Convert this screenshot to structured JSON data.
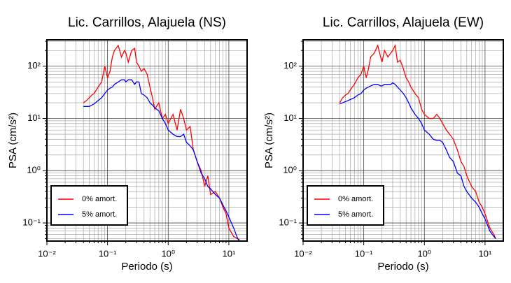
{
  "chart_data": [
    {
      "type": "line",
      "title": "Lic. Carrillos, Alajuela (NS)",
      "xlabel": "Periodo (s)",
      "ylabel": "PSA (cm/s²)",
      "log_x": true,
      "log_y": true,
      "grid": true,
      "minor_grid": true,
      "legend": "bottom-left",
      "xlim": [
        0.01,
        20
      ],
      "ylim": [
        0.045,
        320
      ],
      "xticks": [
        {
          "value": 0.01,
          "label": "10⁻²"
        },
        {
          "value": 0.1,
          "label": "10⁻¹"
        },
        {
          "value": 1,
          "label": "10⁰"
        },
        {
          "value": 10,
          "label": "10¹"
        }
      ],
      "yticks": [
        {
          "value": 0.1,
          "label": "10⁻¹"
        },
        {
          "value": 1,
          "label": "10⁰"
        },
        {
          "value": 10,
          "label": "10¹"
        },
        {
          "value": 100,
          "label": "10²"
        }
      ],
      "x": [
        0.04,
        0.045,
        0.05,
        0.055,
        0.06,
        0.07,
        0.08,
        0.09,
        0.1,
        0.11,
        0.12,
        0.13,
        0.15,
        0.17,
        0.19,
        0.2,
        0.22,
        0.25,
        0.28,
        0.3,
        0.33,
        0.36,
        0.4,
        0.45,
        0.5,
        0.55,
        0.6,
        0.7,
        0.8,
        0.9,
        1.0,
        1.2,
        1.4,
        1.6,
        1.8,
        2.0,
        2.3,
        2.6,
        3.0,
        3.5,
        4.0,
        4.5,
        5,
        6,
        7,
        8,
        9,
        10,
        12,
        14,
        15
      ],
      "series": [
        {
          "name": "0% amort.",
          "color": "#ff0000",
          "values": [
            20,
            22,
            25,
            28,
            30,
            40,
            50,
            100,
            60,
            80,
            150,
            200,
            250,
            150,
            200,
            180,
            120,
            200,
            220,
            120,
            100,
            80,
            90,
            70,
            40,
            25,
            15,
            20,
            10,
            12,
            8,
            12,
            6,
            15,
            10,
            6,
            7,
            2.5,
            1.5,
            1.0,
            0.5,
            0.8,
            0.35,
            0.4,
            0.3,
            0.2,
            0.15,
            0.08,
            0.055,
            0.05,
            0.048
          ]
        },
        {
          "name": "5% amort.",
          "color": "#0000ff",
          "values": [
            17,
            17,
            17,
            18,
            19,
            22,
            25,
            30,
            35,
            38,
            40,
            45,
            50,
            55,
            55,
            50,
            55,
            55,
            45,
            50,
            50,
            30,
            28,
            25,
            20,
            18,
            16,
            14,
            10,
            8,
            6,
            5,
            4.5,
            4.5,
            5,
            3.5,
            3,
            2.5,
            1.5,
            0.9,
            0.7,
            0.5,
            0.45,
            0.35,
            0.3,
            0.22,
            0.17,
            0.13,
            0.08,
            0.05,
            0.045
          ]
        }
      ]
    },
    {
      "type": "line",
      "title": "Lic. Carrillos, Alajuela (EW)",
      "xlabel": "Periodo (s)",
      "ylabel": "PSA (cm/s²)",
      "log_x": true,
      "log_y": true,
      "grid": true,
      "minor_grid": true,
      "legend": "bottom-left",
      "xlim": [
        0.01,
        20
      ],
      "ylim": [
        0.045,
        320
      ],
      "xticks": [
        {
          "value": 0.01,
          "label": "10⁻²"
        },
        {
          "value": 0.1,
          "label": "10⁻¹"
        },
        {
          "value": 1,
          "label": "10⁰"
        },
        {
          "value": 10,
          "label": "10¹"
        }
      ],
      "yticks": [
        {
          "value": 0.1,
          "label": "10⁻¹"
        },
        {
          "value": 1,
          "label": "10⁰"
        },
        {
          "value": 10,
          "label": "10¹"
        },
        {
          "value": 100,
          "label": "10²"
        }
      ],
      "x": [
        0.04,
        0.045,
        0.05,
        0.055,
        0.06,
        0.07,
        0.08,
        0.09,
        0.1,
        0.11,
        0.12,
        0.13,
        0.15,
        0.17,
        0.19,
        0.2,
        0.22,
        0.25,
        0.28,
        0.3,
        0.33,
        0.36,
        0.4,
        0.45,
        0.5,
        0.55,
        0.6,
        0.7,
        0.8,
        0.9,
        1.0,
        1.2,
        1.4,
        1.6,
        1.8,
        2.0,
        2.3,
        2.6,
        3.0,
        3.5,
        4.0,
        4.5,
        5,
        6,
        7,
        8,
        9,
        10,
        12,
        14,
        15
      ],
      "series": [
        {
          "name": "0% amort.",
          "color": "#ff0000",
          "values": [
            20,
            25,
            28,
            30,
            35,
            45,
            60,
            70,
            100,
            60,
            90,
            150,
            180,
            250,
            150,
            120,
            200,
            150,
            180,
            200,
            250,
            120,
            130,
            90,
            60,
            50,
            40,
            30,
            25,
            15,
            12,
            10,
            10,
            12,
            10,
            8,
            6,
            5,
            4,
            2.5,
            1.5,
            1.2,
            0.8,
            0.5,
            0.4,
            0.25,
            0.2,
            0.15,
            0.08,
            0.06,
            0.05
          ]
        },
        {
          "name": "5% amort.",
          "color": "#0000ff",
          "values": [
            19,
            20,
            21,
            22,
            23,
            25,
            28,
            30,
            35,
            38,
            40,
            42,
            45,
            45,
            42,
            42,
            45,
            45,
            45,
            48,
            45,
            40,
            35,
            30,
            25,
            20,
            16,
            12,
            10,
            8,
            6,
            5,
            4,
            3.8,
            3.8,
            3.5,
            2.5,
            1.8,
            1.5,
            0.9,
            0.8,
            0.5,
            0.4,
            0.3,
            0.25,
            0.2,
            0.15,
            0.12,
            0.07,
            0.055,
            0.05
          ]
        }
      ]
    }
  ]
}
